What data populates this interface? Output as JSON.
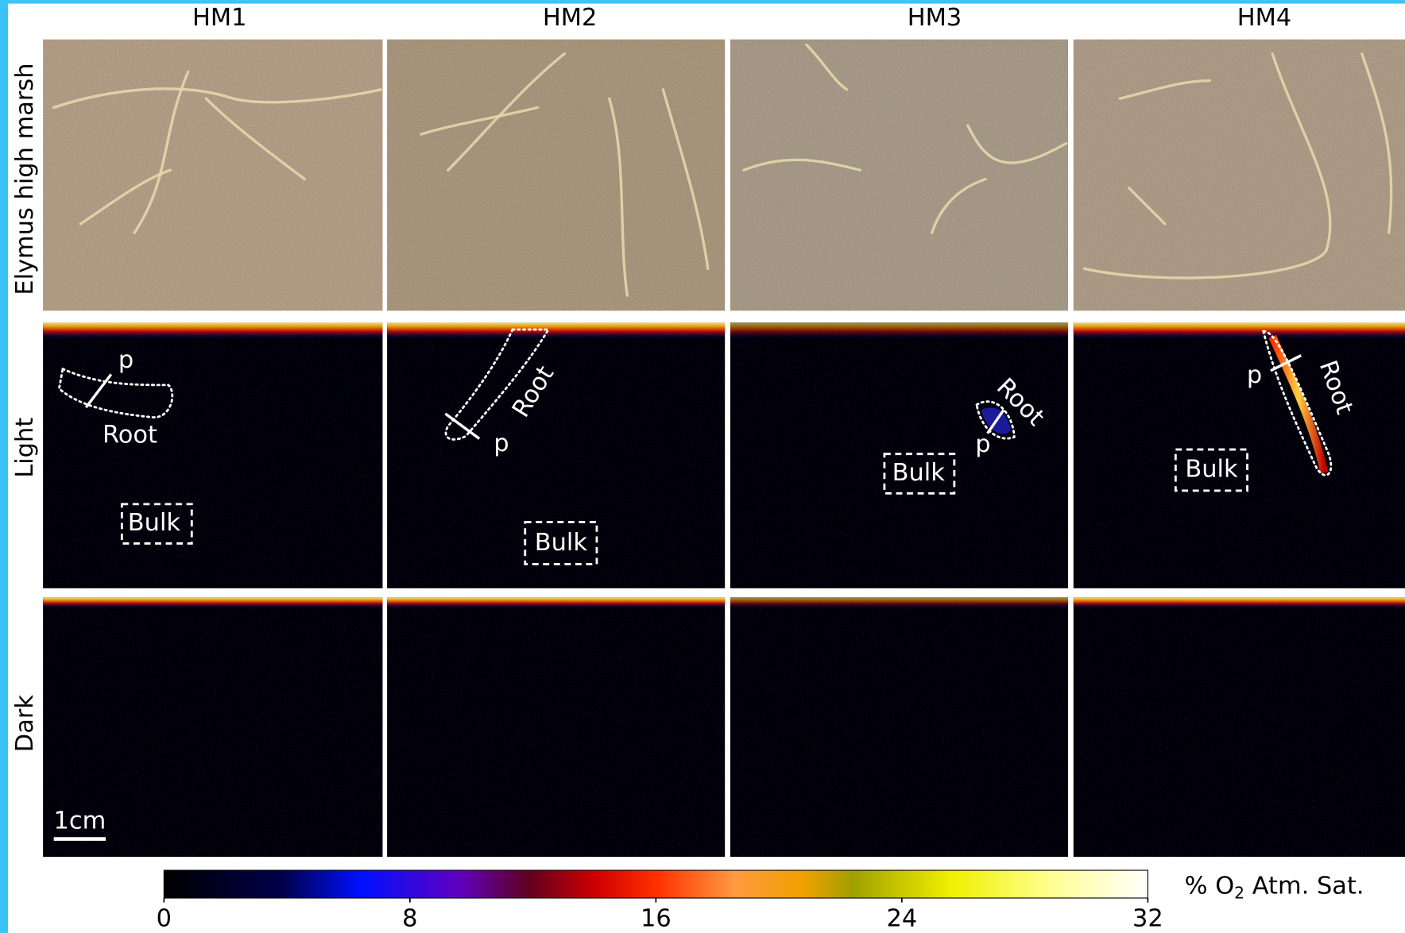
{
  "columns": [
    "HM1",
    "HM2",
    "HM3",
    "HM4"
  ],
  "rows": [
    "Elymus high marsh",
    "Light",
    "Dark"
  ],
  "light_row_annotations": [
    {
      "point": "p",
      "root": "Root",
      "bulk": "Bulk"
    },
    {
      "point": "p",
      "root": "Root",
      "bulk": "Bulk"
    },
    {
      "point": "p",
      "root": "Root",
      "bulk": "Bulk"
    },
    {
      "point": "p",
      "root": "Root",
      "bulk": "Bulk"
    }
  ],
  "scale_bar": "1cm",
  "colorbar": {
    "label": [
      "% O",
      "2",
      " Atm. Sat."
    ],
    "lim": [
      0,
      32
    ],
    "ticks": [
      0,
      8,
      16,
      24,
      32
    ]
  }
}
